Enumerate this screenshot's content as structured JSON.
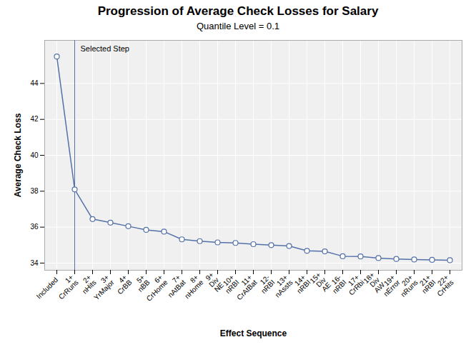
{
  "chart_data": {
    "type": "line",
    "title": "Progression of Average Check Losses for Salary",
    "subtitle": "Quantile Level = 0.1",
    "xlabel": "Effect Sequence",
    "ylabel": "Average Check Loss",
    "categories": [
      "Included",
      "1+\nCrRuns",
      "2+\nnHits",
      "3+\nYrMajor",
      "4+\nCrBB",
      "5+\nnBB",
      "6+\nCrHome",
      "7+\nnAtBat",
      "8+\nnHome",
      "9+\nDiv\nNE",
      "10+\nnRBI",
      "11+\nCrAtBat",
      "12-\nnRBI",
      "13+\nnAssts",
      "14+\nnRBI",
      "15+\nDiv\nAE",
      "16-\nnRBI",
      "17+\nCrRbi",
      "18+\nDiv\nAW",
      "19+\nnError",
      "20+\nnRuns",
      "21+\nnRBI",
      "22+\nCrHits"
    ],
    "values": [
      45.5,
      38.1,
      36.45,
      36.25,
      36.05,
      35.85,
      35.75,
      35.32,
      35.22,
      35.15,
      35.12,
      35.05,
      35.0,
      34.95,
      34.68,
      34.65,
      34.38,
      34.37,
      34.28,
      34.23,
      34.2,
      34.18,
      34.16
    ],
    "color": "#5572a8",
    "marker": "circle",
    "ylim": [
      33.6,
      46.4
    ],
    "yticks": [
      34,
      36,
      38,
      40,
      42,
      44
    ],
    "grid": true,
    "annotations": [
      {
        "text": "Selected Step",
        "category": "1+\nCrRuns"
      }
    ]
  }
}
